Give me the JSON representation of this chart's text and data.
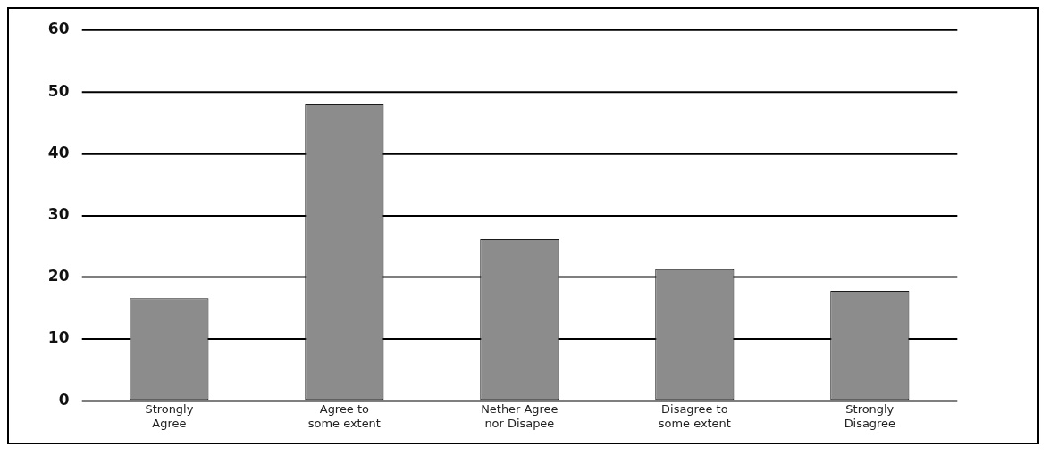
{
  "chart_data": {
    "type": "bar",
    "categories": [
      "Strongly Agree",
      "Agree to some extent",
      "Nether Agree nor Disapee",
      "Disagree to some extent",
      "Strongly Disagree"
    ],
    "values": [
      16.6,
      48,
      26.2,
      21.3,
      17.8
    ],
    "color": "#8c8c8c",
    "ylim": [
      0,
      60
    ],
    "yticks": [
      0,
      10,
      20,
      30,
      40,
      50,
      60
    ],
    "grid": "y",
    "legend": false
  }
}
